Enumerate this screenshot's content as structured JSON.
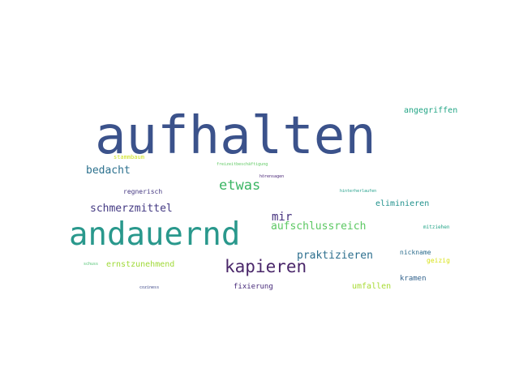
{
  "word_cloud": {
    "words": [
      {
        "text": "aufhalten",
        "color": "#3b528b"
      },
      {
        "text": "andauernd",
        "color": "#29988c"
      },
      {
        "text": "kapieren",
        "color": "#4a276a"
      },
      {
        "text": "etwas",
        "color": "#3ab563"
      },
      {
        "text": "schmerzmittel",
        "color": "#443a83"
      },
      {
        "text": "bedacht",
        "color": "#2c718e"
      },
      {
        "text": "mir",
        "color": "#46327e"
      },
      {
        "text": "aufschlussreich",
        "color": "#5cc863"
      },
      {
        "text": "praktizieren",
        "color": "#2d6f8e"
      },
      {
        "text": "angegriffen",
        "color": "#22a585"
      },
      {
        "text": "eliminieren",
        "color": "#21918c"
      },
      {
        "text": "ernstzunehmend",
        "color": "#a0da39"
      },
      {
        "text": "umfallen",
        "color": "#a8db34"
      },
      {
        "text": "fixierung",
        "color": "#472a7a"
      },
      {
        "text": "regnerisch",
        "color": "#453882"
      },
      {
        "text": "kramen",
        "color": "#33638d"
      },
      {
        "text": "nickname",
        "color": "#2e6e8e"
      },
      {
        "text": "geizig",
        "color": "#d8e219"
      },
      {
        "text": "stammbaum",
        "color": "#cde11d"
      },
      {
        "text": "mitziehen",
        "color": "#20a386"
      },
      {
        "text": "freizeitbeschäftigung",
        "color": "#5ec962"
      },
      {
        "text": "hörensagen",
        "color": "#482576"
      },
      {
        "text": "hinterherlaufen",
        "color": "#1f9e89"
      },
      {
        "text": "schuss",
        "color": "#4ac16d"
      },
      {
        "text": "coziness",
        "color": "#3e4989"
      }
    ]
  }
}
